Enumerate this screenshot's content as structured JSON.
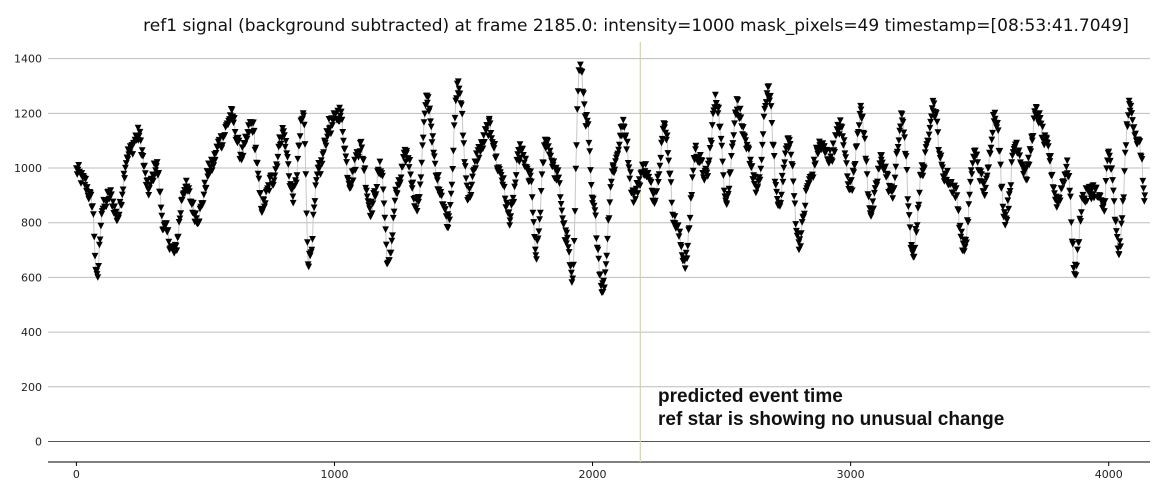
{
  "chart_data": {
    "type": "scatter",
    "title": "ref1 signal (background subtracted) at frame 2185.0: intensity=1000 mask_pixels=49 timestamp=[08:53:41.7049]",
    "xlabel": "",
    "ylabel": "",
    "xlim": [
      -110,
      4160
    ],
    "ylim": [
      -75,
      1450
    ],
    "x_ticks": [
      0,
      1000,
      2000,
      3000,
      4000
    ],
    "y_ticks": [
      0,
      200,
      400,
      600,
      800,
      1000,
      1200,
      1400
    ],
    "grid": "horizontal",
    "marker": "triangle-down",
    "marker_color": "#000000",
    "connector_color": "#c8c8c8",
    "event_line": {
      "x": 2185,
      "color": "#d8d2a0"
    },
    "annotation_lines": [
      "predicted event time",
      "ref star is showing no unusual change"
    ],
    "series": [
      {
        "anchors": [
          [
            0,
            990
          ],
          [
            30,
            950
          ],
          [
            60,
            880
          ],
          [
            80,
            590
          ],
          [
            100,
            850
          ],
          [
            130,
            900
          ],
          [
            160,
            820
          ],
          [
            200,
            1050
          ],
          [
            240,
            1120
          ],
          [
            280,
            920
          ],
          [
            310,
            1010
          ],
          [
            340,
            780
          ],
          [
            380,
            690
          ],
          [
            420,
            930
          ],
          [
            470,
            820
          ],
          [
            520,
            1000
          ],
          [
            560,
            1100
          ],
          [
            600,
            1190
          ],
          [
            640,
            1050
          ],
          [
            680,
            1160
          ],
          [
            720,
            860
          ],
          [
            760,
            960
          ],
          [
            800,
            1130
          ],
          [
            840,
            900
          ],
          [
            880,
            1190
          ],
          [
            900,
            660
          ],
          [
            940,
            990
          ],
          [
            980,
            1150
          ],
          [
            1020,
            1200
          ],
          [
            1060,
            950
          ],
          [
            1100,
            1080
          ],
          [
            1140,
            850
          ],
          [
            1180,
            1000
          ],
          [
            1210,
            640
          ],
          [
            1240,
            910
          ],
          [
            1280,
            1050
          ],
          [
            1320,
            860
          ],
          [
            1360,
            1250
          ],
          [
            1400,
            950
          ],
          [
            1440,
            810
          ],
          [
            1480,
            1300
          ],
          [
            1520,
            900
          ],
          [
            1560,
            1060
          ],
          [
            1600,
            1150
          ],
          [
            1640,
            990
          ],
          [
            1680,
            820
          ],
          [
            1720,
            1060
          ],
          [
            1760,
            960
          ],
          [
            1780,
            680
          ],
          [
            1820,
            1100
          ],
          [
            1860,
            980
          ],
          [
            1900,
            740
          ],
          [
            1920,
            590
          ],
          [
            1950,
            1370
          ],
          [
            1980,
            1160
          ],
          [
            2000,
            870
          ],
          [
            2040,
            560
          ],
          [
            2080,
            1000
          ],
          [
            2120,
            1150
          ],
          [
            2160,
            900
          ],
          [
            2200,
            1000
          ],
          [
            2240,
            900
          ],
          [
            2280,
            1150
          ],
          [
            2320,
            800
          ],
          [
            2360,
            660
          ],
          [
            2400,
            1060
          ],
          [
            2440,
            970
          ],
          [
            2480,
            1250
          ],
          [
            2520,
            890
          ],
          [
            2560,
            1230
          ],
          [
            2600,
            1060
          ],
          [
            2640,
            920
          ],
          [
            2680,
            1290
          ],
          [
            2720,
            870
          ],
          [
            2760,
            1100
          ],
          [
            2800,
            730
          ],
          [
            2840,
            950
          ],
          [
            2880,
            1080
          ],
          [
            2920,
            1040
          ],
          [
            2960,
            1150
          ],
          [
            3000,
            930
          ],
          [
            3040,
            1200
          ],
          [
            3080,
            840
          ],
          [
            3120,
            1030
          ],
          [
            3160,
            910
          ],
          [
            3200,
            1180
          ],
          [
            3240,
            680
          ],
          [
            3280,
            1000
          ],
          [
            3320,
            1230
          ],
          [
            3360,
            980
          ],
          [
            3400,
            930
          ],
          [
            3440,
            710
          ],
          [
            3480,
            1050
          ],
          [
            3520,
            920
          ],
          [
            3560,
            1200
          ],
          [
            3600,
            820
          ],
          [
            3640,
            1090
          ],
          [
            3680,
            980
          ],
          [
            3720,
            1200
          ],
          [
            3760,
            1080
          ],
          [
            3800,
            880
          ],
          [
            3840,
            1000
          ],
          [
            3870,
            620
          ],
          [
            3900,
            890
          ],
          [
            3940,
            920
          ],
          [
            3980,
            860
          ],
          [
            4000,
            1050
          ],
          [
            4040,
            700
          ],
          [
            4080,
            1220
          ],
          [
            4120,
            1080
          ],
          [
            4140,
            900
          ]
        ]
      }
    ]
  }
}
